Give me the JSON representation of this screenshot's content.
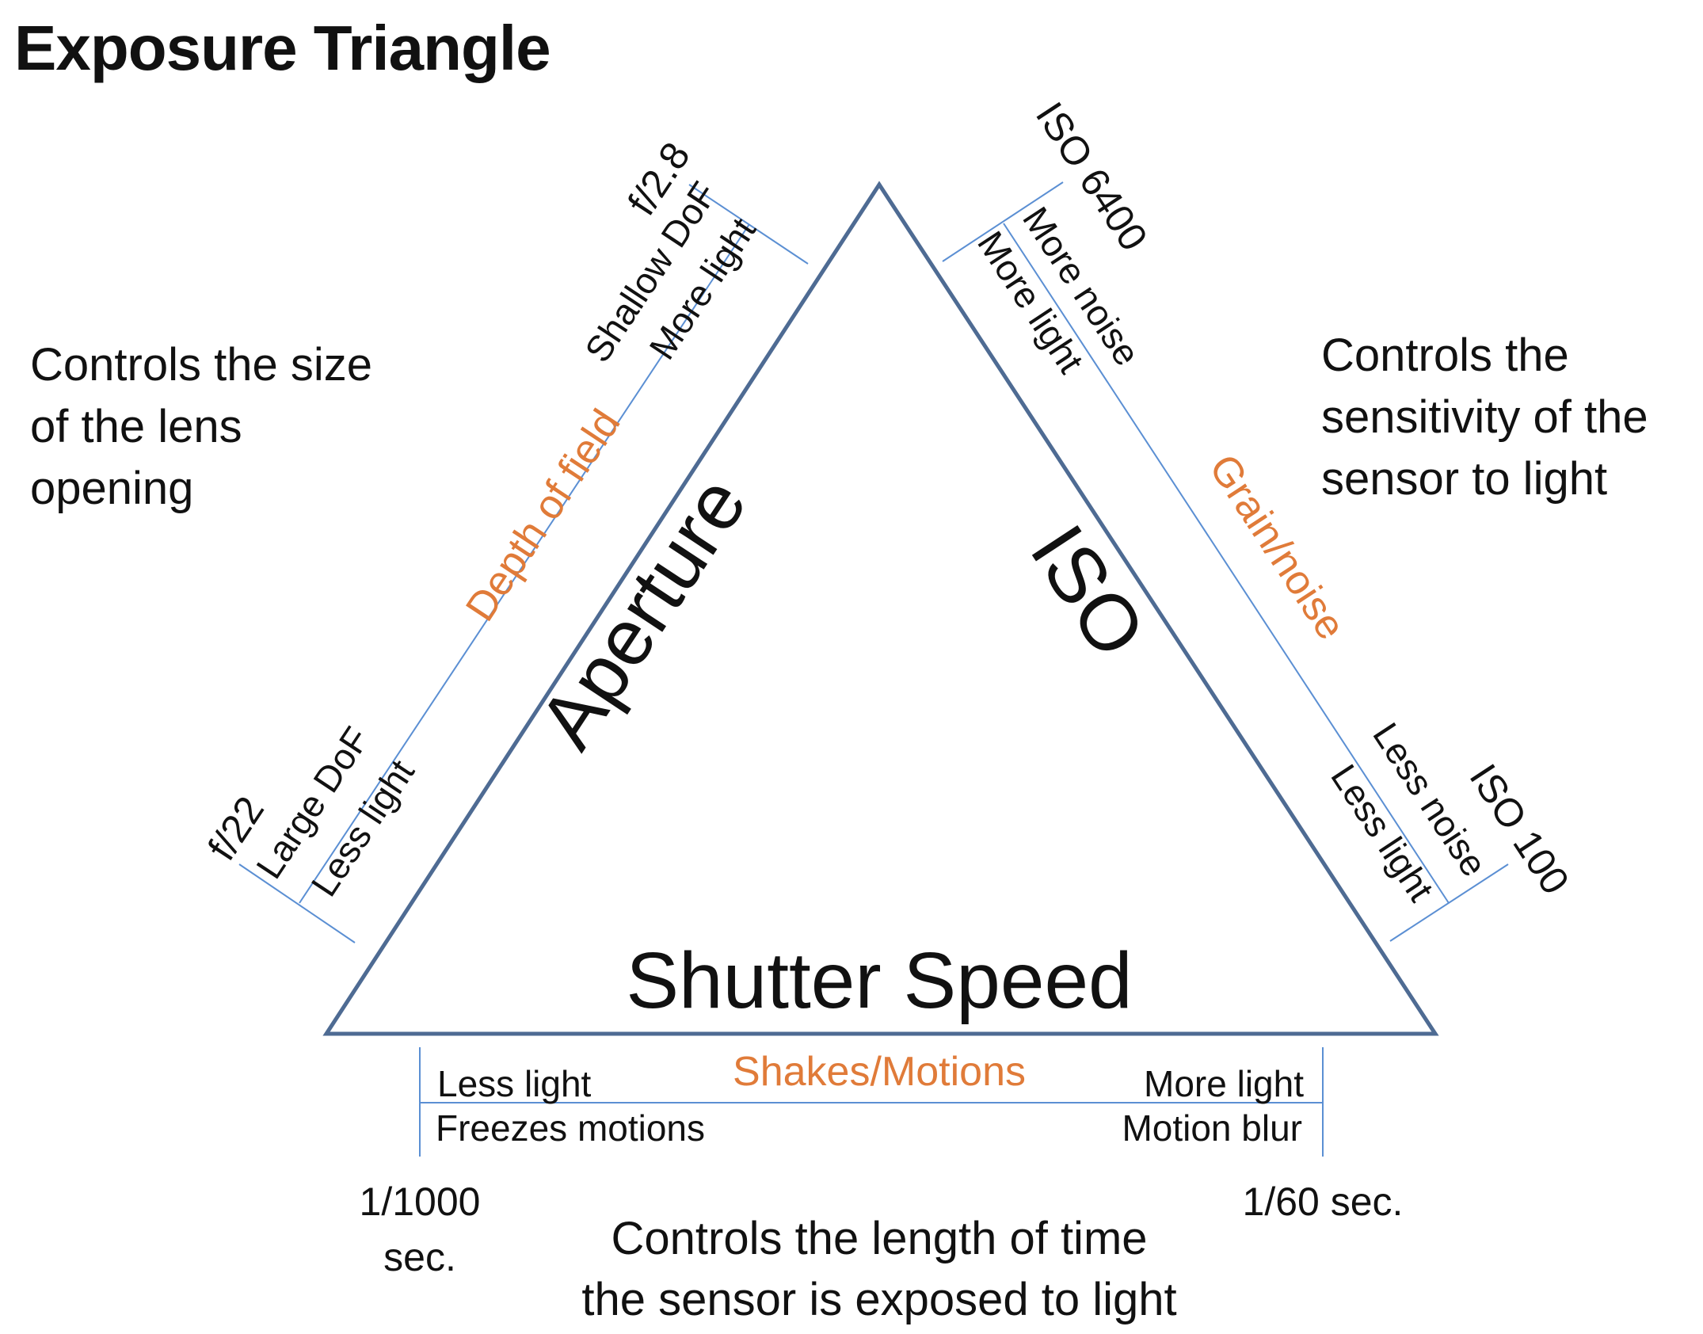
{
  "title": "Exposure Triangle",
  "colors": {
    "triangle": "#4e6b93",
    "scale_line": "#5b8fd3",
    "accent": "#e07b39",
    "text": "#111111"
  },
  "aperture": {
    "label": "Aperture",
    "description": [
      "Controls the size",
      "of the lens",
      "opening"
    ],
    "effect": "Depth of field",
    "wide_setting": "f/2.8",
    "narrow_setting": "f/22",
    "wide_effect": "Shallow DoF",
    "narrow_effect": "Large DoF",
    "wide_light": "More light",
    "narrow_light": "Less light"
  },
  "iso": {
    "label": "ISO",
    "description": [
      "Controls the",
      "sensitivity of the",
      "sensor to light"
    ],
    "effect": "Grain/noise",
    "high_setting": "ISO 6400",
    "low_setting": "ISO 100",
    "high_effect": "More noise",
    "low_effect": "Less noise",
    "high_light": "More light",
    "low_light": "Less light"
  },
  "shutter": {
    "label": "Shutter Speed",
    "description": [
      "Controls the length of time",
      "the sensor is exposed to light"
    ],
    "effect": "Shakes/Motions",
    "fast_setting": [
      "1/1000",
      "sec."
    ],
    "slow_setting": "1/60 sec.",
    "fast_light": "Less light",
    "slow_light": "More light",
    "fast_effect": "Freezes motions",
    "slow_effect": "Motion blur"
  }
}
